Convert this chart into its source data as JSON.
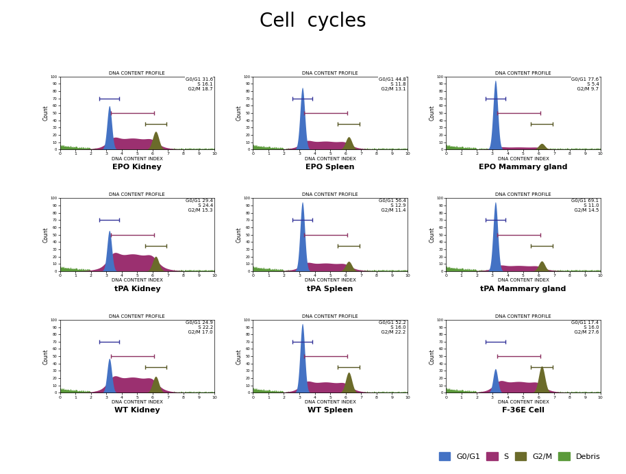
{
  "title": "Cell  cycles",
  "subplots": [
    {
      "label": "EPO Kidney",
      "g0g1": 31.6,
      "s": 16.1,
      "g2m": 18.7
    },
    {
      "label": "EPO Spleen",
      "g0g1": 44.8,
      "s": 11.8,
      "g2m": 13.1
    },
    {
      "label": "EPO Mammary gland",
      "g0g1": 77.6,
      "s": 5.4,
      "g2m": 9.7
    },
    {
      "label": "tPA Kidney",
      "g0g1": 29.4,
      "s": 24.4,
      "g2m": 15.3
    },
    {
      "label": "tPA Spleen",
      "g0g1": 56.4,
      "s": 12.9,
      "g2m": 11.4
    },
    {
      "label": "tPA Mammary gland",
      "g0g1": 69.1,
      "s": 11.0,
      "g2m": 14.5
    },
    {
      "label": "WT Kidney",
      "g0g1": 24.9,
      "s": 22.2,
      "g2m": 17.0
    },
    {
      "label": "WT Spleen",
      "g0g1": 52.2,
      "s": 16.0,
      "g2m": 22.2
    },
    {
      "label": "F-36E Cell",
      "g0g1": 17.4,
      "s": 16.0,
      "g2m": 27.6
    }
  ],
  "peak1": 3.2,
  "peak2": 6.2,
  "color_g0g1": "#4472C4",
  "color_s": "#9B3070",
  "color_g2m": "#6B6B2A",
  "color_debris": "#5B9A3A",
  "color_bg": "#FFFFFF",
  "bracket_g0g1_color": "#333399",
  "bracket_s_color": "#8B3060",
  "bracket_g2m_color": "#555522"
}
